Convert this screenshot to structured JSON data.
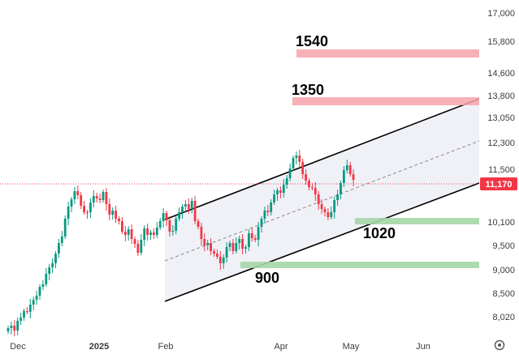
{
  "chart_data": {
    "type": "candlestick",
    "x_ticks": [
      "Dec",
      "2025",
      "Feb",
      "Apr",
      "May",
      "Jun"
    ],
    "y_ticks": [
      "17,000",
      "15,800",
      "14,600",
      "13,800",
      "13,050",
      "12,300",
      "11,500",
      "10,100",
      "9,500",
      "9,000",
      "8,500",
      "8,020"
    ],
    "last_price": {
      "label": "11,170",
      "value": 11170
    },
    "colors": {
      "up": "#089981",
      "down": "#f23645",
      "resistance": "#f4a3a9",
      "support": "#a5d6a7",
      "last_price": "#f23645",
      "channel": "#000000",
      "channel_fill": "#e8eaf2"
    },
    "resistance_zones": [
      {
        "label": "1540"
      },
      {
        "label": "1350"
      }
    ],
    "support_zones": [
      {
        "label": "1020"
      },
      {
        "label": "900"
      }
    ],
    "icons": {
      "settings": "gear-icon"
    }
  }
}
